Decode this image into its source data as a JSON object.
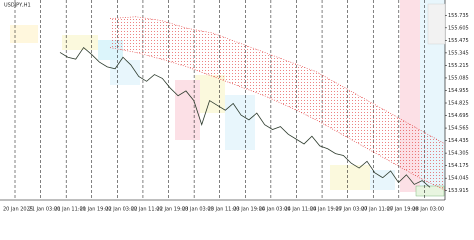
{
  "chart_data": {
    "type": "line",
    "title": "USDJPY,H1",
    "xticks": [
      "20 Jan 2025",
      "21 Jan 03:00",
      "21 Jan 11:00",
      "21 Jan 19:00",
      "22 Jan 03:00",
      "22 Jan 11:00",
      "22 Jan 19:00",
      "23 Jan 03:00",
      "23 Jan 11:00",
      "23 Jan 19:00",
      "24 Jan 03:00",
      "24 Jan 11:00",
      "24 Jan 19:00",
      "27 Jan 03:00",
      "27 Jan 11:00",
      "27 Jan 19:00",
      "28 Jan 03:00"
    ],
    "ylim": [
      153.86,
      155.79
    ],
    "yticks": [
      153.915,
      154.045,
      154.175,
      154.305,
      154.435,
      154.565,
      154.695,
      154.825,
      154.955,
      155.085,
      155.215,
      155.345,
      155.475,
      155.605,
      155.735
    ],
    "series": [
      {
        "color": "#2d3b2d",
        "values": [
          155.35,
          155.3,
          155.28,
          155.4,
          155.33,
          155.25,
          155.2,
          155.18,
          155.3,
          155.22,
          155.1,
          155.05,
          155.12,
          155.08,
          154.98,
          154.9,
          154.95,
          154.85,
          154.6,
          154.85,
          154.8,
          154.75,
          154.82,
          154.7,
          154.65,
          154.72,
          154.6,
          154.55,
          154.58,
          154.5,
          154.45,
          154.4,
          154.48,
          154.38,
          154.35,
          154.3,
          154.28,
          154.2,
          154.15,
          154.22,
          154.1,
          154.05,
          154.12,
          154.0,
          154.08,
          153.98,
          154.02,
          153.95
        ]
      }
    ],
    "cloud": {
      "color": "#e03030",
      "upper": [
        155.7,
        155.72,
        155.68,
        155.6,
        155.55,
        155.45,
        155.35,
        155.25,
        155.15,
        155.0,
        154.85,
        154.7,
        154.55,
        154.4
      ],
      "lower": [
        155.4,
        155.35,
        155.28,
        155.2,
        155.1,
        155.0,
        154.9,
        154.78,
        154.65,
        154.5,
        154.35,
        154.2,
        154.05,
        153.92
      ]
    }
  }
}
